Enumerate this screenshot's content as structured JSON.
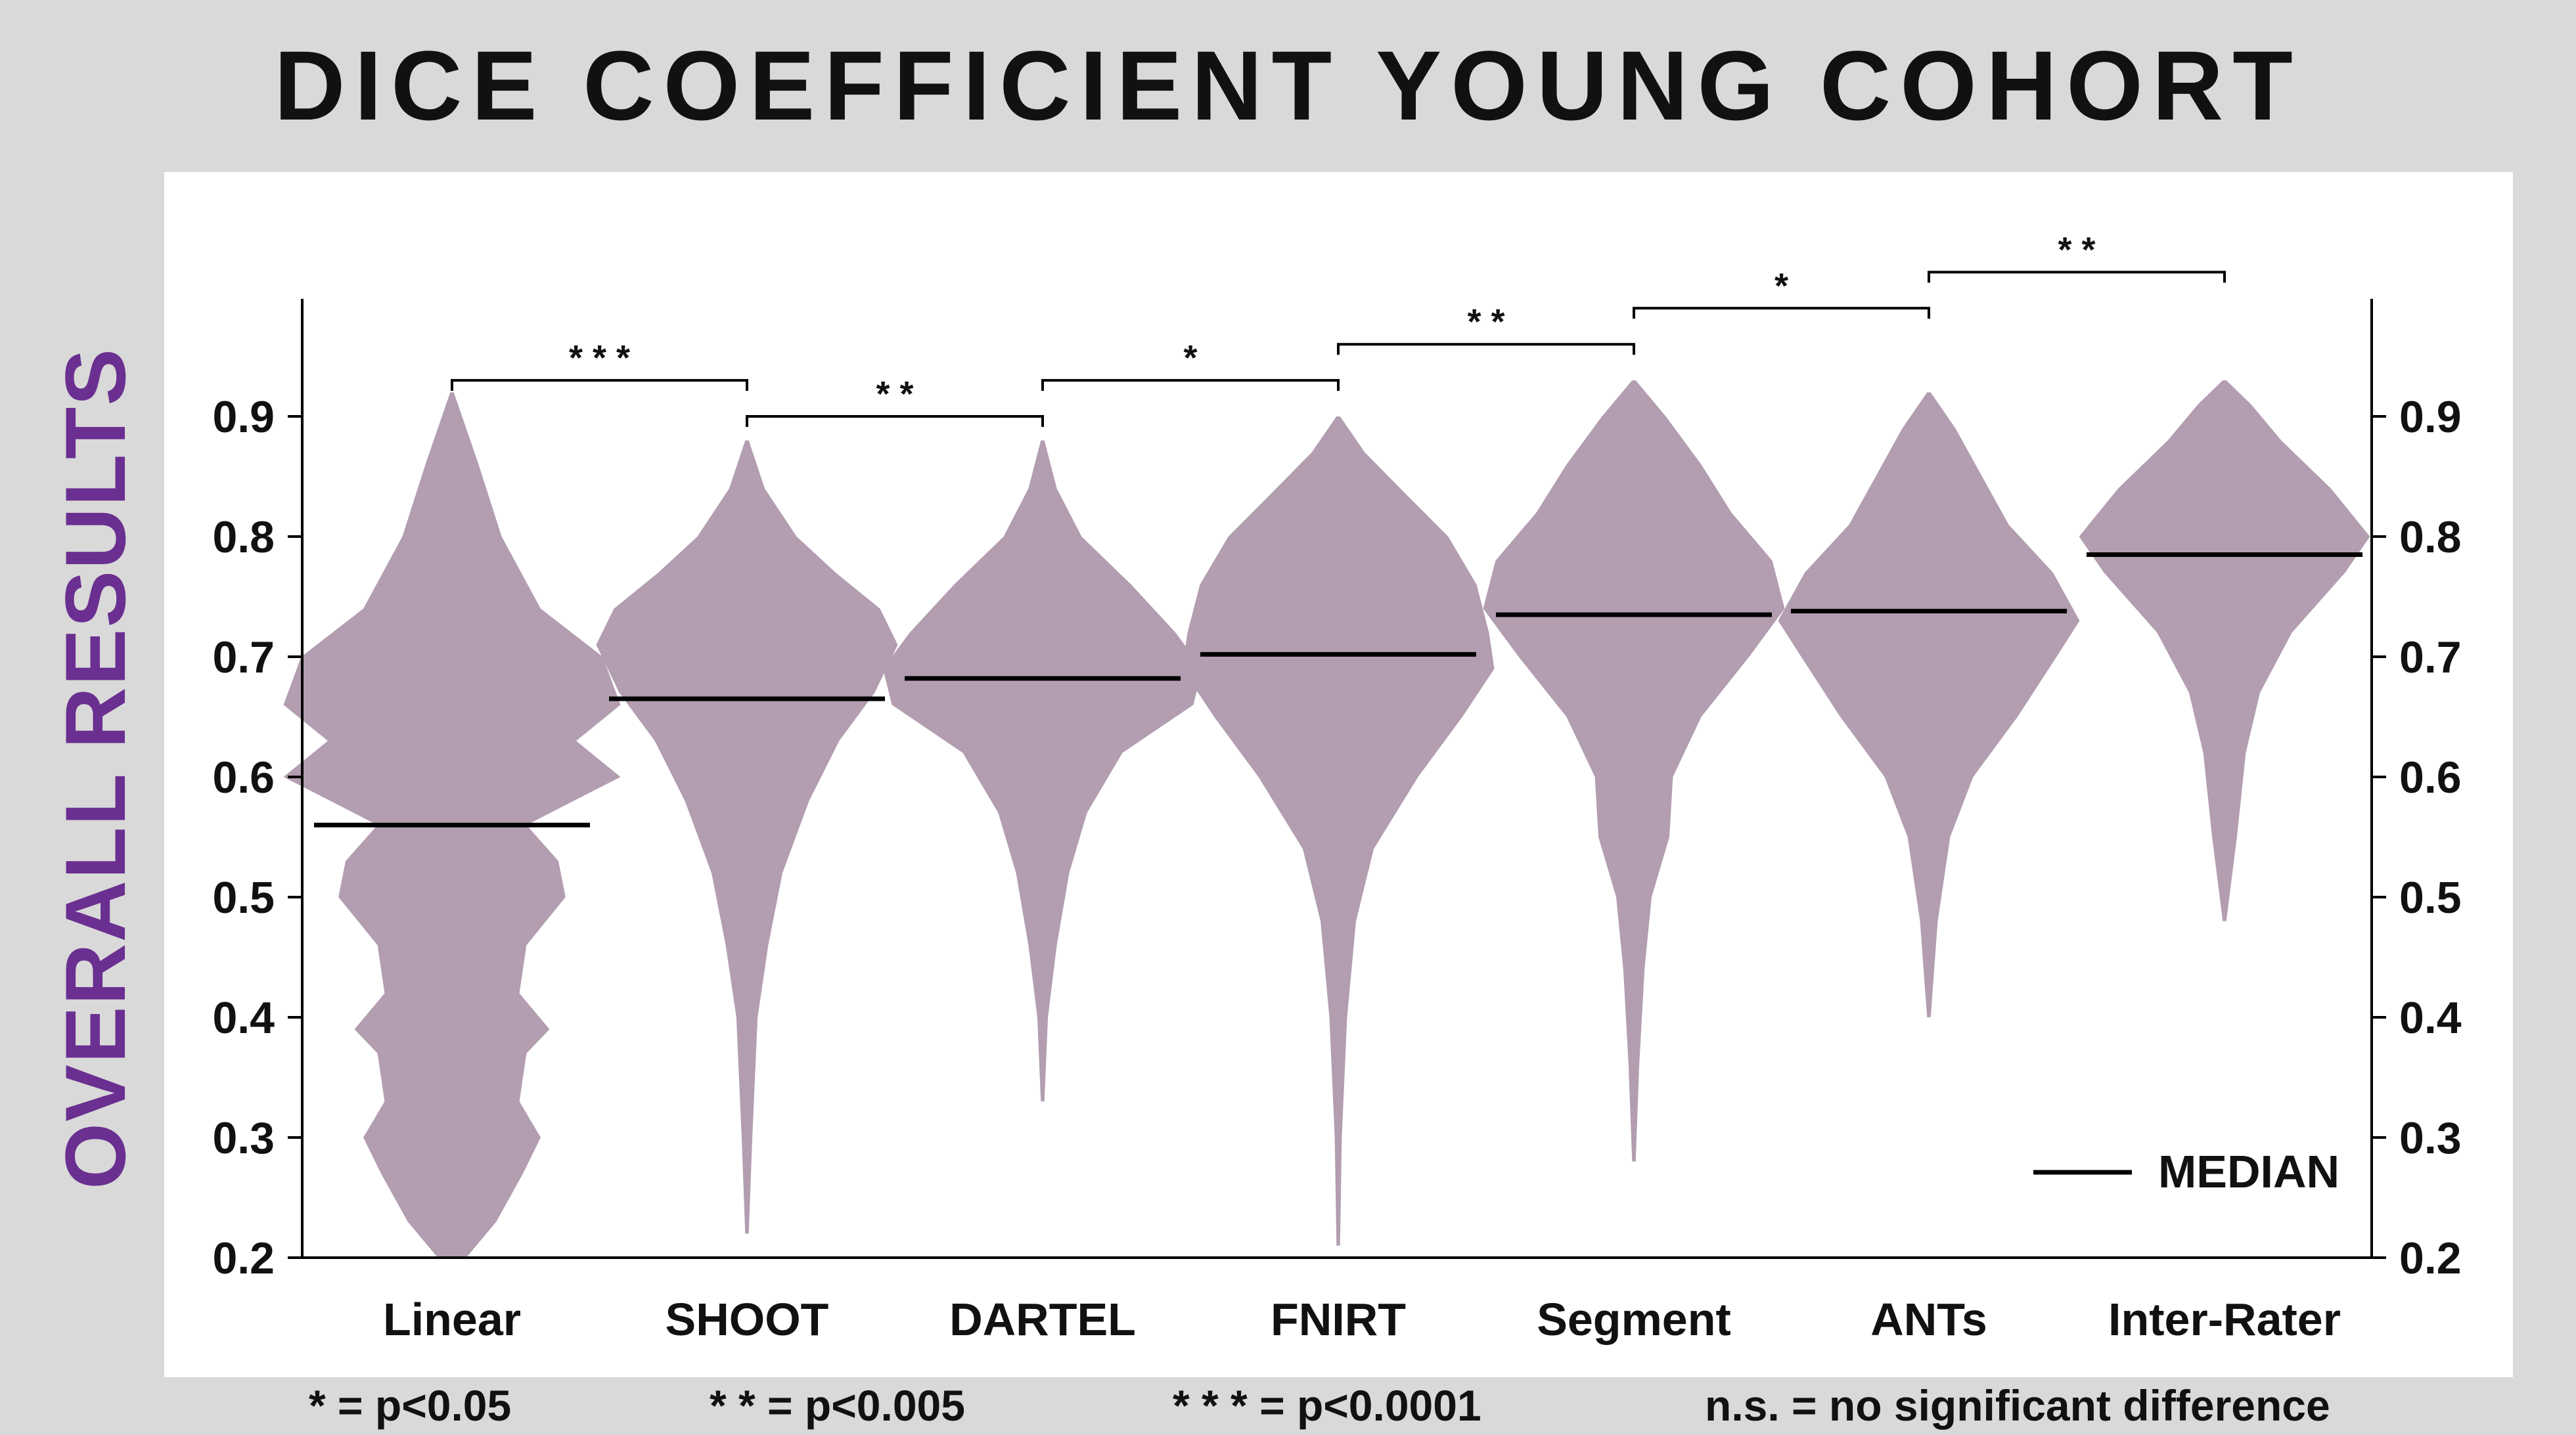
{
  "chart_data": {
    "type": "violin",
    "title": "DICE COEFFICIENT YOUNG COHORT",
    "ylabel": "OVERALL RESULTS",
    "xlabel": "",
    "ylim": [
      0.2,
      1.0
    ],
    "yticks": [
      "0.2",
      "0.3",
      "0.4",
      "0.5",
      "0.6",
      "0.7",
      "0.8",
      "0.9"
    ],
    "categories": [
      "Linear",
      "SHOOT",
      "DARTEL",
      "FNIRT",
      "Segment",
      "ANTs",
      "Inter-Rater"
    ],
    "medians": [
      0.56,
      0.665,
      0.682,
      0.702,
      0.735,
      0.738,
      0.785
    ],
    "violins": [
      {
        "name": "Linear",
        "ymin": 0.2,
        "ymax": 0.92,
        "density": [
          [
            0.2,
            0.08
          ],
          [
            0.23,
            0.25
          ],
          [
            0.27,
            0.4
          ],
          [
            0.3,
            0.5
          ],
          [
            0.33,
            0.38
          ],
          [
            0.37,
            0.42
          ],
          [
            0.39,
            0.55
          ],
          [
            0.42,
            0.38
          ],
          [
            0.46,
            0.42
          ],
          [
            0.5,
            0.64
          ],
          [
            0.53,
            0.6
          ],
          [
            0.56,
            0.42
          ],
          [
            0.6,
            0.95
          ],
          [
            0.63,
            0.7
          ],
          [
            0.66,
            0.95
          ],
          [
            0.7,
            0.85
          ],
          [
            0.74,
            0.5
          ],
          [
            0.8,
            0.28
          ],
          [
            0.86,
            0.15
          ],
          [
            0.92,
            0.01
          ]
        ]
      },
      {
        "name": "SHOOT",
        "ymin": 0.22,
        "ymax": 0.88,
        "density": [
          [
            0.22,
            0.01
          ],
          [
            0.3,
            0.03
          ],
          [
            0.4,
            0.06
          ],
          [
            0.46,
            0.12
          ],
          [
            0.52,
            0.2
          ],
          [
            0.58,
            0.35
          ],
          [
            0.63,
            0.52
          ],
          [
            0.67,
            0.72
          ],
          [
            0.71,
            0.85
          ],
          [
            0.74,
            0.75
          ],
          [
            0.77,
            0.5
          ],
          [
            0.8,
            0.28
          ],
          [
            0.84,
            0.1
          ],
          [
            0.88,
            0.01
          ]
        ]
      },
      {
        "name": "DARTEL",
        "ymin": 0.33,
        "ymax": 0.88,
        "density": [
          [
            0.33,
            0.01
          ],
          [
            0.4,
            0.03
          ],
          [
            0.46,
            0.08
          ],
          [
            0.52,
            0.15
          ],
          [
            0.57,
            0.25
          ],
          [
            0.62,
            0.45
          ],
          [
            0.66,
            0.85
          ],
          [
            0.69,
            0.9
          ],
          [
            0.72,
            0.75
          ],
          [
            0.76,
            0.5
          ],
          [
            0.8,
            0.22
          ],
          [
            0.84,
            0.08
          ],
          [
            0.88,
            0.01
          ]
        ]
      },
      {
        "name": "FNIRT",
        "ymin": 0.21,
        "ymax": 0.9,
        "density": [
          [
            0.21,
            0.01
          ],
          [
            0.3,
            0.02
          ],
          [
            0.4,
            0.05
          ],
          [
            0.48,
            0.1
          ],
          [
            0.54,
            0.2
          ],
          [
            0.6,
            0.45
          ],
          [
            0.65,
            0.7
          ],
          [
            0.69,
            0.88
          ],
          [
            0.72,
            0.85
          ],
          [
            0.76,
            0.78
          ],
          [
            0.8,
            0.62
          ],
          [
            0.84,
            0.35
          ],
          [
            0.87,
            0.15
          ],
          [
            0.9,
            0.01
          ]
        ]
      },
      {
        "name": "Segment",
        "ymin": 0.28,
        "ymax": 0.93,
        "density": [
          [
            0.28,
            0.01
          ],
          [
            0.36,
            0.03
          ],
          [
            0.44,
            0.06
          ],
          [
            0.5,
            0.1
          ],
          [
            0.55,
            0.2
          ],
          [
            0.6,
            0.22
          ],
          [
            0.65,
            0.38
          ],
          [
            0.7,
            0.65
          ],
          [
            0.74,
            0.85
          ],
          [
            0.78,
            0.78
          ],
          [
            0.82,
            0.55
          ],
          [
            0.86,
            0.38
          ],
          [
            0.9,
            0.18
          ],
          [
            0.93,
            0.01
          ]
        ]
      },
      {
        "name": "ANTs",
        "ymin": 0.4,
        "ymax": 0.92,
        "density": [
          [
            0.4,
            0.01
          ],
          [
            0.48,
            0.05
          ],
          [
            0.55,
            0.12
          ],
          [
            0.6,
            0.25
          ],
          [
            0.65,
            0.5
          ],
          [
            0.7,
            0.72
          ],
          [
            0.73,
            0.85
          ],
          [
            0.77,
            0.7
          ],
          [
            0.81,
            0.45
          ],
          [
            0.85,
            0.3
          ],
          [
            0.89,
            0.15
          ],
          [
            0.92,
            0.01
          ]
        ]
      },
      {
        "name": "Inter-Rater",
        "ymin": 0.48,
        "ymax": 0.93,
        "density": [
          [
            0.48,
            0.01
          ],
          [
            0.55,
            0.07
          ],
          [
            0.62,
            0.12
          ],
          [
            0.67,
            0.2
          ],
          [
            0.72,
            0.38
          ],
          [
            0.77,
            0.68
          ],
          [
            0.8,
            0.82
          ],
          [
            0.84,
            0.6
          ],
          [
            0.88,
            0.32
          ],
          [
            0.91,
            0.15
          ],
          [
            0.93,
            0.01
          ]
        ]
      }
    ],
    "significance": [
      {
        "from": "Linear",
        "to": "SHOOT",
        "y": 0.93,
        "label": "* * *"
      },
      {
        "from": "SHOOT",
        "to": "DARTEL",
        "y": 0.9,
        "label": "* *"
      },
      {
        "from": "DARTEL",
        "to": "FNIRT",
        "y": 0.93,
        "label": "*"
      },
      {
        "from": "FNIRT",
        "to": "Segment",
        "y": 0.96,
        "label": "* *"
      },
      {
        "from": "Segment",
        "to": "ANTs",
        "y": 0.99,
        "label": "*"
      },
      {
        "from": "ANTs",
        "to": "Inter-Rater",
        "y": 1.02,
        "label": "* *"
      }
    ],
    "legend": {
      "entries": [
        "MEDIAN"
      ],
      "placement": "bottom-right"
    },
    "grid": false,
    "colors": {
      "violin": "#b29eb0",
      "median": "#000000",
      "ylabel": "#6a2f90"
    }
  },
  "footnotes": [
    "* = p<0.05",
    "* * = p<0.005",
    "* * * = p<0.0001",
    "n.s. = no significant difference"
  ]
}
